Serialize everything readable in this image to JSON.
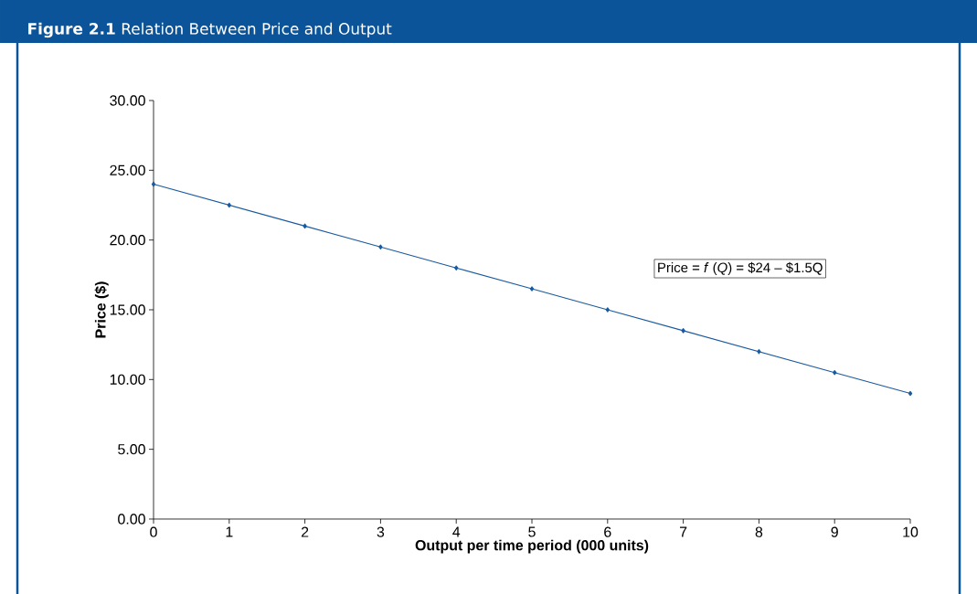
{
  "chart_data": {
    "type": "line",
    "title": "**Figure 2.1** Relation Between Price and Output",
    "xlabel": "Output per time period (000 units)",
    "ylabel": "Price ($)",
    "x": [
      0,
      1,
      2,
      3,
      4,
      5,
      6,
      7,
      8,
      9,
      10
    ],
    "series": [
      {
        "color": "#1a5a9e",
        "values": [
          24,
          22.5,
          21,
          19.5,
          18,
          16.5,
          15,
          13.5,
          12,
          10.5,
          9
        ]
      }
    ],
    "xlim": [
      0,
      10
    ],
    "ylim": [
      0,
      30
    ],
    "xticks": [
      0,
      1,
      2,
      3,
      4,
      5,
      6,
      7,
      8,
      9,
      10
    ],
    "yticks": [
      {
        "value": 0,
        "label": "0.00"
      },
      {
        "value": 5,
        "label": "5.00"
      },
      {
        "value": 10,
        "label": "10.00"
      },
      {
        "value": 15,
        "label": "15.00"
      },
      {
        "value": 20,
        "label": "20.00"
      },
      {
        "value": 25,
        "label": "25.00"
      },
      {
        "value": 30,
        "label": "30.00"
      }
    ],
    "annotations": [
      "Price = *f* (*Q*) = $24 – $1.5Q"
    ],
    "marker": "diamond",
    "line_style": "solid",
    "grid": false
  }
}
